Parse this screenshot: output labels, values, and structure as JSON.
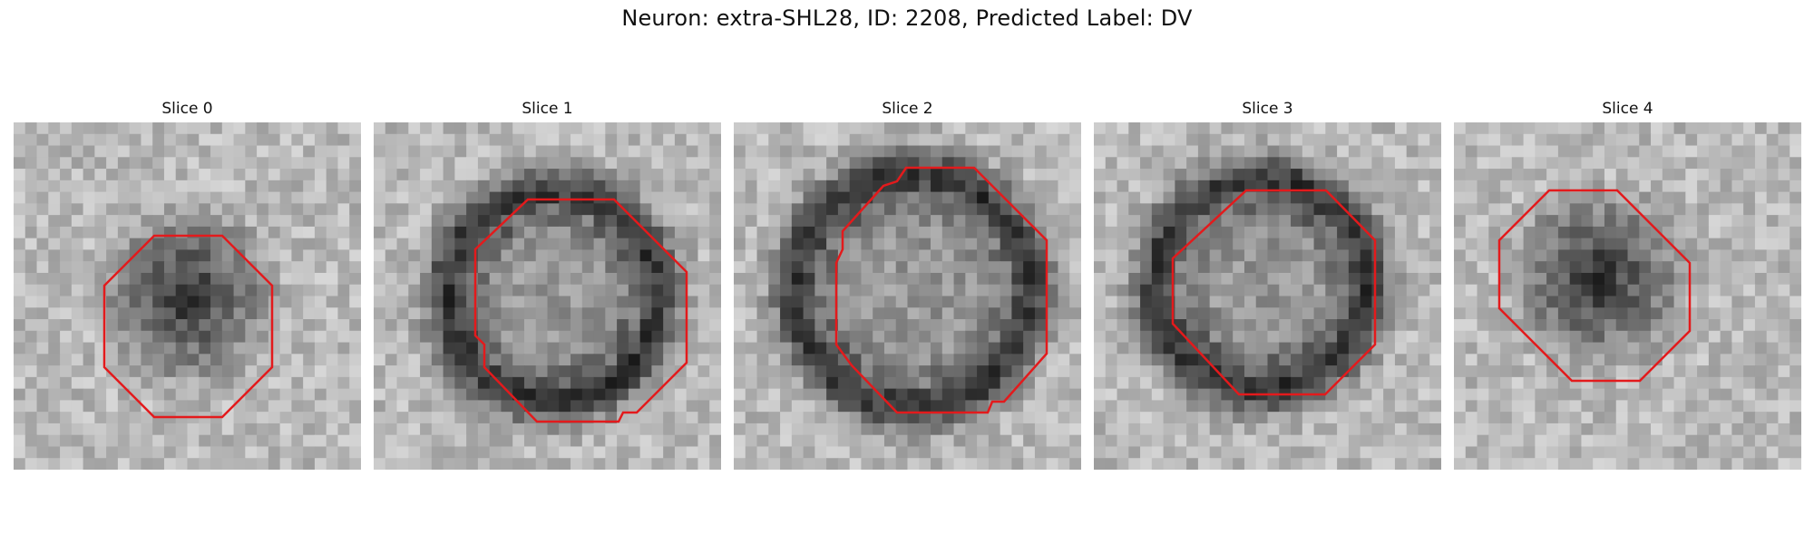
{
  "figure": {
    "title": "Neuron: extra-SHL28, ID: 2208, Predicted Label: DV"
  },
  "panels": [
    {
      "title": "Slice 0",
      "contour_color": "#e31a1c"
    },
    {
      "title": "Slice 1",
      "contour_color": "#e31a1c"
    },
    {
      "title": "Slice 2",
      "contour_color": "#e31a1c"
    },
    {
      "title": "Slice 3",
      "contour_color": "#e31a1c"
    },
    {
      "title": "Slice 4",
      "contour_color": "#e31a1c"
    }
  ]
}
